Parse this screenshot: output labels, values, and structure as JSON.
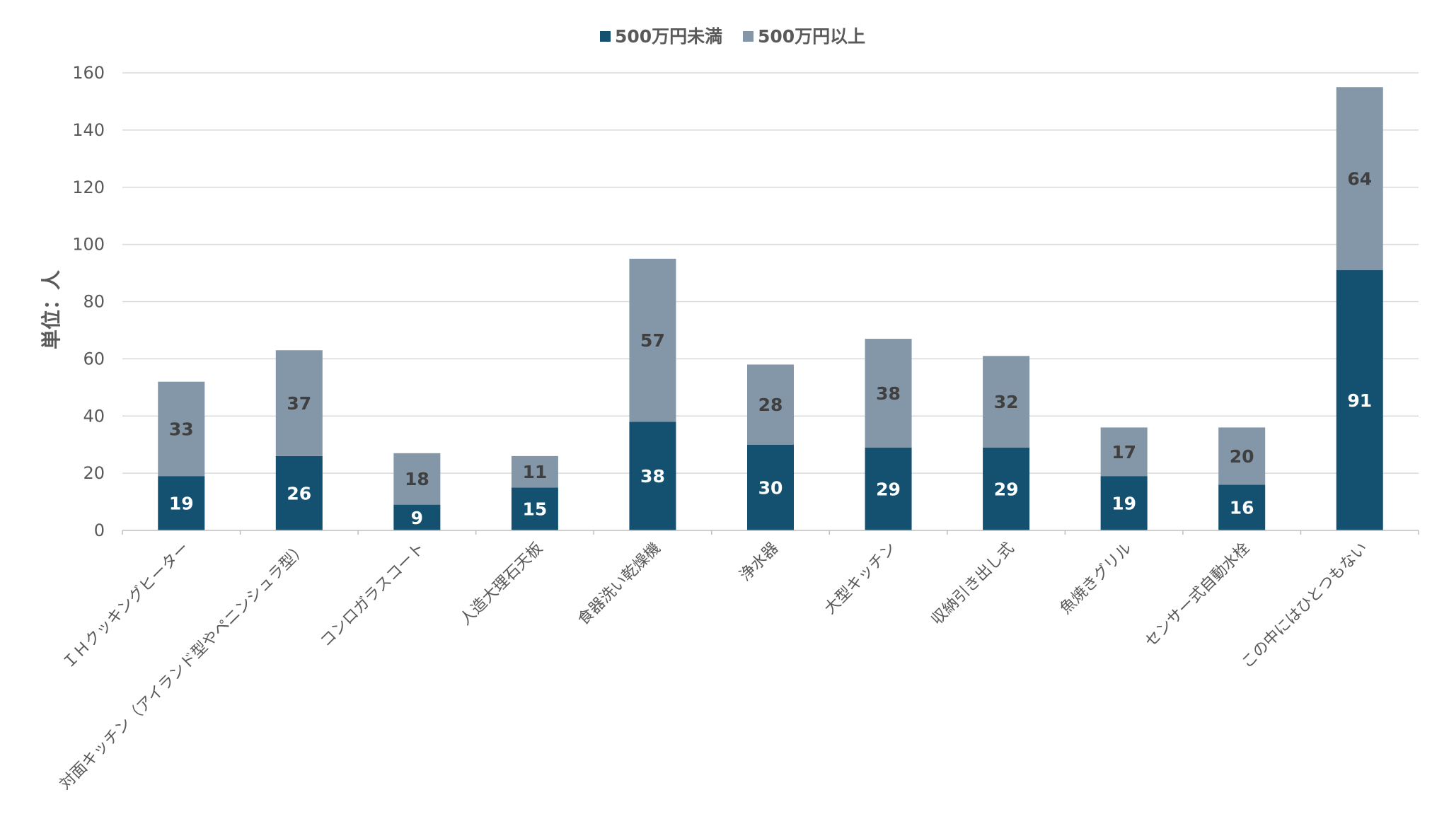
{
  "chart_data": {
    "type": "bar",
    "stacked": true,
    "categories": [
      "ＩＨクッキングヒーター",
      "対面キッチン（アイランド型やペニンシュラ型）",
      "コンロガラスコート",
      "人造大理石天板",
      "食器洗い乾燥機",
      "浄水器",
      "大型キッチン",
      "収納引き出し式",
      "魚焼きグリル",
      "センサー式自動水栓",
      "この中にはひとつもない"
    ],
    "series": [
      {
        "name": "500万円未満",
        "color": "#14506F",
        "label_color": "#FFFFFF",
        "values": [
          19,
          26,
          9,
          15,
          38,
          30,
          29,
          29,
          19,
          16,
          91
        ]
      },
      {
        "name": "500万円以上",
        "color": "#8497A8",
        "label_color": "#404040",
        "values": [
          33,
          37,
          18,
          11,
          57,
          28,
          38,
          32,
          17,
          20,
          64
        ]
      }
    ],
    "title": "",
    "xlabel": "",
    "ylabel": "単位：人",
    "ylim": [
      0,
      160
    ],
    "yticks": [
      0,
      20,
      40,
      60,
      80,
      100,
      120,
      140,
      160
    ],
    "grid": true,
    "legend_position": "top-center"
  }
}
